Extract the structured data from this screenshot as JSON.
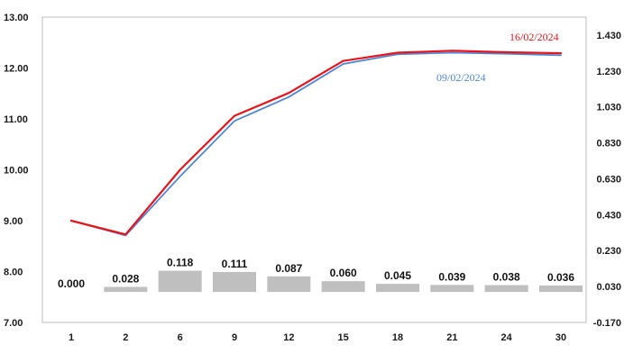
{
  "chart_data": {
    "type": "line+bar",
    "categories": [
      "1",
      "2",
      "6",
      "9",
      "12",
      "15",
      "18",
      "21",
      "24",
      "30"
    ],
    "series": [
      {
        "name": "16/02/2024",
        "type": "line",
        "axis": "left",
        "color": "#e8141c",
        "values": [
          9.0,
          8.73,
          10.0,
          11.06,
          11.51,
          12.14,
          12.3,
          12.34,
          12.31,
          12.29
        ]
      },
      {
        "name": "09/02/2024",
        "type": "line",
        "axis": "left",
        "color": "#4f86d4",
        "values": [
          9.0,
          8.71,
          9.87,
          10.96,
          11.43,
          12.08,
          12.27,
          12.3,
          12.28,
          12.25
        ]
      },
      {
        "name": "",
        "type": "bar",
        "axis": "right",
        "color": "#bfbfbf",
        "values": [
          0.0,
          0.028,
          0.118,
          0.111,
          0.087,
          0.06,
          0.045,
          0.039,
          0.038,
          0.036
        ],
        "labels": [
          "0.000",
          "0.028",
          "0.118",
          "0.111",
          "0.087",
          "0.060",
          "0.045",
          "0.039",
          "0.038",
          "0.036"
        ]
      }
    ],
    "y_left": {
      "range": [
        7.0,
        13.0
      ],
      "ticks": [
        "7.00",
        "8.00",
        "9.00",
        "10.00",
        "11.00",
        "12.00",
        "13.00"
      ]
    },
    "y_right": {
      "range": [
        -0.17,
        1.53
      ],
      "ticks": [
        "-0.170",
        "0.030",
        "0.230",
        "0.430",
        "0.630",
        "0.830",
        "1.030",
        "1.230",
        "1.430"
      ]
    },
    "legend": {
      "placement": "top-right",
      "entries": [
        {
          "text": "16/02/2024",
          "color": "#e8141c"
        },
        {
          "text": "09/02/2024",
          "color": "#4f86d4"
        }
      ]
    },
    "grid": false
  }
}
